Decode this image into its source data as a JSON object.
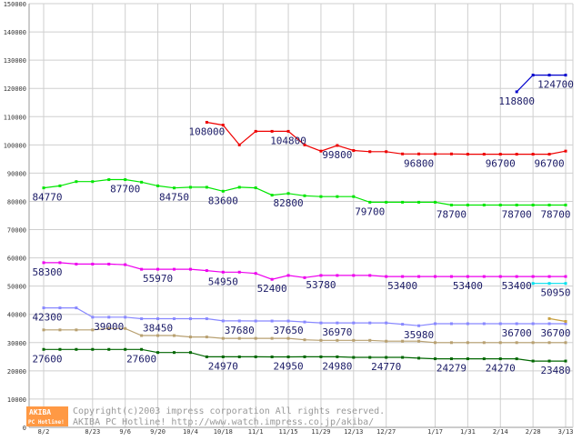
{
  "chart_data": {
    "type": "line",
    "categories": [
      "8/2",
      "8/9",
      "8/16",
      "8/23",
      "8/30",
      "9/6",
      "9/13",
      "9/20",
      "9/27",
      "10/4",
      "10/11",
      "10/18",
      "10/25",
      "11/1",
      "11/8",
      "11/15",
      "11/22",
      "11/29",
      "12/6",
      "12/13",
      "12/20",
      "12/27",
      "1/3",
      "1/10",
      "1/17",
      "1/24",
      "1/31",
      "2/7",
      "2/14",
      "2/21",
      "2/28",
      "3/6",
      "3/13"
    ],
    "x_tick_labels": [
      "8/2",
      "8/23",
      "9/6",
      "9/20",
      "10/4",
      "10/18",
      "11/1",
      "11/15",
      "11/29",
      "12/13",
      "12/27",
      "1/17",
      "1/31",
      "2/14",
      "2/28",
      "3/13"
    ],
    "y_ticks": [
      "0",
      "10000",
      "20000",
      "30000",
      "40000",
      "50000",
      "60000",
      "70000",
      "80000",
      "90000",
      "100000",
      "110000",
      "120000",
      "130000",
      "140000",
      "150000"
    ],
    "ylim": [
      0,
      150000
    ],
    "grid": true,
    "title": "",
    "xlabel": "",
    "ylabel": "",
    "series": [
      {
        "color": "#0000cc",
        "values": [
          null,
          null,
          null,
          null,
          null,
          null,
          null,
          null,
          null,
          null,
          null,
          null,
          null,
          null,
          null,
          null,
          null,
          null,
          null,
          null,
          null,
          null,
          null,
          null,
          null,
          null,
          null,
          null,
          null,
          118800,
          124700,
          124700,
          124700
        ]
      },
      {
        "color": "#ee0000",
        "values": [
          null,
          null,
          null,
          null,
          null,
          null,
          null,
          null,
          null,
          null,
          108000,
          107000,
          100000,
          104800,
          104800,
          104800,
          100000,
          97800,
          99800,
          98000,
          97600,
          97600,
          96800,
          96800,
          96800,
          96800,
          96700,
          96700,
          96700,
          96700,
          96700,
          96700,
          97800
        ]
      },
      {
        "color": "#00e600",
        "values": [
          84770,
          85500,
          87000,
          87000,
          87700,
          87700,
          86800,
          85500,
          84750,
          85000,
          85000,
          83600,
          85000,
          84800,
          82200,
          82800,
          82000,
          81700,
          81700,
          81700,
          79700,
          79700,
          79700,
          79700,
          79700,
          78700,
          78700,
          78700,
          78700,
          78700,
          78700,
          78700,
          78700
        ]
      },
      {
        "color": "#ee00ee",
        "values": [
          58300,
          58300,
          57800,
          57800,
          57800,
          57600,
          55970,
          55970,
          55970,
          55970,
          55500,
          54950,
          54950,
          54500,
          52400,
          53780,
          53000,
          53780,
          53780,
          53780,
          53780,
          53400,
          53400,
          53400,
          53400,
          53400,
          53400,
          53400,
          53400,
          53400,
          53400,
          53400,
          53400
        ]
      },
      {
        "color": "#00e0ee",
        "values": [
          null,
          null,
          null,
          null,
          null,
          null,
          null,
          null,
          null,
          null,
          null,
          null,
          null,
          null,
          null,
          null,
          null,
          null,
          null,
          null,
          null,
          null,
          null,
          null,
          null,
          null,
          null,
          null,
          null,
          null,
          50950,
          50950,
          50950
        ]
      },
      {
        "color": "#8888ff",
        "values": [
          42300,
          42300,
          42300,
          39000,
          39000,
          39000,
          38450,
          38450,
          38450,
          38450,
          38450,
          37680,
          37680,
          37650,
          37650,
          37650,
          37300,
          36970,
          36970,
          36970,
          36970,
          36970,
          36500,
          35980,
          36700,
          36700,
          36700,
          36700,
          36700,
          36700,
          36700,
          36700,
          36700
        ]
      },
      {
        "color": "#c8a040",
        "values": [
          null,
          null,
          null,
          null,
          null,
          null,
          null,
          null,
          null,
          null,
          null,
          null,
          null,
          null,
          null,
          null,
          null,
          null,
          null,
          null,
          null,
          null,
          null,
          null,
          null,
          null,
          null,
          null,
          null,
          null,
          null,
          38500,
          37500
        ]
      },
      {
        "color": "#b8a070",
        "values": [
          34500,
          34500,
          34500,
          34500,
          35000,
          35000,
          32500,
          32500,
          32500,
          32000,
          32000,
          31500,
          31500,
          31500,
          31500,
          31500,
          31000,
          30800,
          30800,
          30800,
          30800,
          30500,
          30500,
          30500,
          30000,
          30000,
          30000,
          30000,
          30000,
          30000,
          30000,
          30000,
          30000
        ]
      },
      {
        "color": "#006600",
        "values": [
          27600,
          27600,
          27600,
          27600,
          27600,
          27600,
          27600,
          26500,
          26500,
          26500,
          24970,
          24970,
          24970,
          24970,
          24950,
          24950,
          24980,
          24980,
          24980,
          24770,
          24770,
          24770,
          24770,
          24500,
          24279,
          24279,
          24279,
          24279,
          24270,
          24270,
          23480,
          23480,
          23480
        ]
      }
    ],
    "data_labels": [
      {
        "text": "124700",
        "x": "3/13",
        "y": 124700
      },
      {
        "text": "118800",
        "x": "2/21",
        "y": 118800
      },
      {
        "text": "108000",
        "x": "10/11",
        "y": 108000
      },
      {
        "text": "104800",
        "x": "11/15",
        "y": 104800
      },
      {
        "text": "99800",
        "x": "12/6",
        "y": 99800
      },
      {
        "text": "96800",
        "x": "1/10",
        "y": 96800
      },
      {
        "text": "96700",
        "x": "2/14",
        "y": 96700
      },
      {
        "text": "96700",
        "x": "3/6",
        "y": 96700
      },
      {
        "text": "84770",
        "x": "8/2",
        "y": 84770
      },
      {
        "text": "87700",
        "x": "9/6",
        "y": 87700
      },
      {
        "text": "84750",
        "x": "9/27",
        "y": 84750
      },
      {
        "text": "83600",
        "x": "10/18",
        "y": 83600
      },
      {
        "text": "82800",
        "x": "11/15",
        "y": 82800
      },
      {
        "text": "79700",
        "x": "12/20",
        "y": 79700
      },
      {
        "text": "78700",
        "x": "1/24",
        "y": 78700
      },
      {
        "text": "78700",
        "x": "2/21",
        "y": 78700
      },
      {
        "text": "78700",
        "x": "3/13",
        "y": 78700
      },
      {
        "text": "58300",
        "x": "8/2",
        "y": 58300
      },
      {
        "text": "55970",
        "x": "9/20",
        "y": 55970
      },
      {
        "text": "54950",
        "x": "10/18",
        "y": 54950
      },
      {
        "text": "52400",
        "x": "11/8",
        "y": 52400
      },
      {
        "text": "53780",
        "x": "11/29",
        "y": 53780
      },
      {
        "text": "53400",
        "x": "1/3",
        "y": 53400
      },
      {
        "text": "53400",
        "x": "1/31",
        "y": 53400
      },
      {
        "text": "53400",
        "x": "2/21",
        "y": 53400
      },
      {
        "text": "50950",
        "x": "3/13",
        "y": 50950
      },
      {
        "text": "42300",
        "x": "8/2",
        "y": 42300
      },
      {
        "text": "39000",
        "x": "8/30",
        "y": 39000
      },
      {
        "text": "38450",
        "x": "9/20",
        "y": 38450
      },
      {
        "text": "37680",
        "x": "10/25",
        "y": 37680
      },
      {
        "text": "37650",
        "x": "11/15",
        "y": 37650
      },
      {
        "text": "36970",
        "x": "12/6",
        "y": 36970
      },
      {
        "text": "35980",
        "x": "1/10",
        "y": 35980
      },
      {
        "text": "36700",
        "x": "2/21",
        "y": 36700
      },
      {
        "text": "36700",
        "x": "3/13",
        "y": 36700
      },
      {
        "text": "27600",
        "x": "8/2",
        "y": 27600
      },
      {
        "text": "27600",
        "x": "9/13",
        "y": 27600
      },
      {
        "text": "24970",
        "x": "10/18",
        "y": 24970
      },
      {
        "text": "24950",
        "x": "11/15",
        "y": 24950
      },
      {
        "text": "24980",
        "x": "12/6",
        "y": 24980
      },
      {
        "text": "24770",
        "x": "12/27",
        "y": 24770
      },
      {
        "text": "24279",
        "x": "1/24",
        "y": 24279
      },
      {
        "text": "24270",
        "x": "2/14",
        "y": 24270
      },
      {
        "text": "23480",
        "x": "3/13",
        "y": 23480
      }
    ]
  },
  "watermark": {
    "logo_top": "AKIBA",
    "logo_bottom": "PC Hotline!",
    "copyright": "Copyright(c)2003 impress corporation All rights reserved.",
    "site": "AKIBA PC Hotline!  http://www.watch.impress.co.jp/akiba/"
  }
}
